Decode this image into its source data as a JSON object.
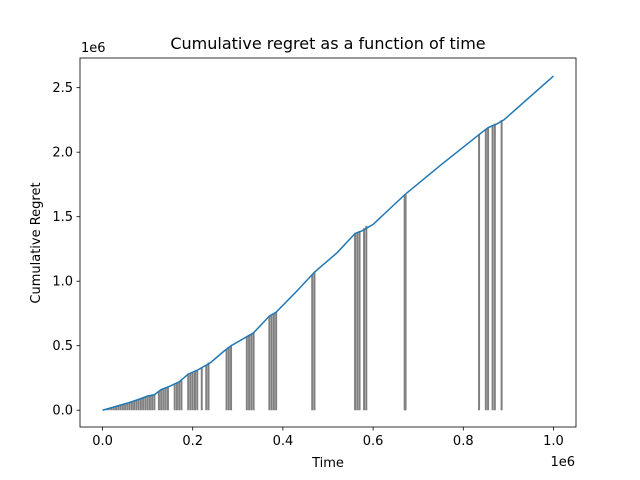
{
  "chart_data": {
    "type": "line",
    "title": "Cumulative regret as a function of time",
    "xlabel": "Time",
    "ylabel": "Cumulative Regret",
    "x_offset_label": "1e6",
    "y_offset_label": "1e6",
    "xlim": [
      -0.05,
      1.05
    ],
    "ylim": [
      -0.13,
      2.73
    ],
    "x_ticks": [
      0.0,
      0.2,
      0.4,
      0.6,
      0.8,
      1.0
    ],
    "x_tick_labels": [
      "0.0",
      "0.2",
      "0.4",
      "0.6",
      "0.8",
      "1.0"
    ],
    "y_ticks": [
      0.0,
      0.5,
      1.0,
      1.5,
      2.0,
      2.5
    ],
    "y_tick_labels": [
      "0.0",
      "0.5",
      "1.0",
      "1.5",
      "2.0",
      "2.5"
    ],
    "grid": false,
    "series": [
      {
        "color": "#1f77b4",
        "x": [
          0.0,
          0.03,
          0.06,
          0.085,
          0.1,
          0.115,
          0.13,
          0.145,
          0.17,
          0.19,
          0.21,
          0.24,
          0.27,
          0.285,
          0.32,
          0.335,
          0.37,
          0.385,
          0.43,
          0.47,
          0.52,
          0.56,
          0.575,
          0.6,
          0.67,
          0.75,
          0.84,
          0.855,
          0.875,
          0.89,
          1.0
        ],
        "y": [
          0.0,
          0.03,
          0.06,
          0.09,
          0.11,
          0.12,
          0.16,
          0.18,
          0.22,
          0.28,
          0.31,
          0.37,
          0.46,
          0.5,
          0.57,
          0.6,
          0.73,
          0.76,
          0.92,
          1.07,
          1.22,
          1.37,
          1.39,
          1.44,
          1.67,
          1.9,
          2.15,
          2.19,
          2.22,
          2.25,
          2.59
        ]
      }
    ],
    "spikes": {
      "color": "#808080",
      "x": [
        0.01,
        0.015,
        0.02,
        0.025,
        0.03,
        0.035,
        0.04,
        0.045,
        0.05,
        0.055,
        0.06,
        0.065,
        0.07,
        0.075,
        0.08,
        0.085,
        0.09,
        0.095,
        0.1,
        0.105,
        0.11,
        0.115,
        0.125,
        0.13,
        0.135,
        0.14,
        0.145,
        0.16,
        0.165,
        0.17,
        0.175,
        0.19,
        0.195,
        0.2,
        0.205,
        0.21,
        0.22,
        0.23,
        0.235,
        0.275,
        0.28,
        0.285,
        0.32,
        0.325,
        0.33,
        0.335,
        0.37,
        0.375,
        0.38,
        0.385,
        0.465,
        0.47,
        0.56,
        0.565,
        0.57,
        0.58,
        0.585,
        0.67,
        0.672,
        0.835,
        0.85,
        0.855,
        0.865,
        0.87,
        0.885
      ],
      "top": [
        0.01,
        0.015,
        0.02,
        0.025,
        0.03,
        0.035,
        0.04,
        0.045,
        0.05,
        0.055,
        0.06,
        0.065,
        0.07,
        0.075,
        0.08,
        0.09,
        0.1,
        0.105,
        0.11,
        0.115,
        0.12,
        0.12,
        0.15,
        0.16,
        0.165,
        0.17,
        0.18,
        0.2,
        0.21,
        0.22,
        0.23,
        0.28,
        0.285,
        0.29,
        0.3,
        0.31,
        0.33,
        0.35,
        0.37,
        0.47,
        0.49,
        0.5,
        0.57,
        0.58,
        0.59,
        0.6,
        0.73,
        0.74,
        0.75,
        0.76,
        1.05,
        1.07,
        1.37,
        1.38,
        1.39,
        1.41,
        1.43,
        1.66,
        1.67,
        2.14,
        2.18,
        2.19,
        2.21,
        2.22,
        2.25
      ]
    }
  }
}
